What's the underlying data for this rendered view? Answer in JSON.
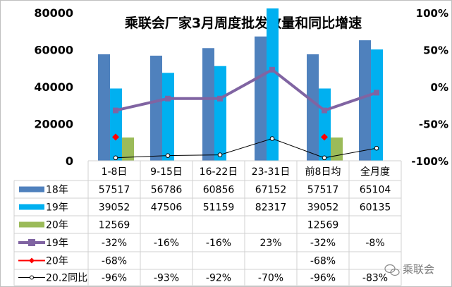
{
  "chart_data": {
    "type": "bar",
    "title": "乘联会厂家3月周度批发数量和同比增速",
    "categories": [
      "1-8日",
      "9-15日",
      "16-22日",
      "23-31日",
      "前8日均",
      "全月度"
    ],
    "left_axis": {
      "ylim": [
        0,
        80000
      ],
      "ticks": [
        "0",
        "20000",
        "40000",
        "60000",
        "80000"
      ],
      "tick_values": [
        0,
        20000,
        40000,
        60000,
        80000
      ]
    },
    "right_axis": {
      "ylim": [
        -100,
        100
      ],
      "ticks": [
        "-100%",
        "-50%",
        "0%",
        "50%",
        "100%"
      ],
      "tick_values": [
        -100,
        -50,
        0,
        50,
        100
      ]
    },
    "bar_series": [
      {
        "name": "18年",
        "color": "#4f81bd",
        "values": [
          57517,
          56786,
          60856,
          67152,
          57517,
          65104
        ],
        "labels": [
          "57517",
          "56786",
          "60856",
          "67152",
          "57517",
          "65104"
        ]
      },
      {
        "name": "19年",
        "color": "#00b0f0",
        "values": [
          39052,
          47506,
          51159,
          82317,
          39052,
          60135
        ],
        "labels": [
          "39052",
          "47506",
          "51159",
          "82317",
          "39052",
          "60135"
        ]
      },
      {
        "name": "20年",
        "color": "#9bbb59",
        "values": [
          12569,
          null,
          null,
          null,
          12569,
          null
        ],
        "labels": [
          "12569",
          "",
          "",
          "",
          "12569",
          ""
        ]
      }
    ],
    "line_series": [
      {
        "name": "19年",
        "color": "#8064a2",
        "marker": "square",
        "values": [
          -32,
          -16,
          -16,
          23,
          -32,
          -8
        ],
        "labels": [
          "-32%",
          "-16%",
          "-16%",
          "23%",
          "-32%",
          "-8%"
        ]
      },
      {
        "name": "20年",
        "color": "#ff0000",
        "marker": "diamond",
        "values": [
          -68,
          null,
          null,
          null,
          -68,
          null
        ],
        "labels": [
          "-68%",
          "",
          "",
          "",
          "-68%",
          ""
        ]
      },
      {
        "name": "20.2同比",
        "color": "#000000",
        "marker": "circle",
        "values": [
          -96,
          -93,
          -92,
          -70,
          -96,
          -83
        ],
        "labels": [
          "-96%",
          "-93%",
          "-92%",
          "-70%",
          "-96%",
          "-83%"
        ]
      }
    ],
    "legend_placement": "data-table-left",
    "grid": false
  },
  "watermark": "乘联会"
}
